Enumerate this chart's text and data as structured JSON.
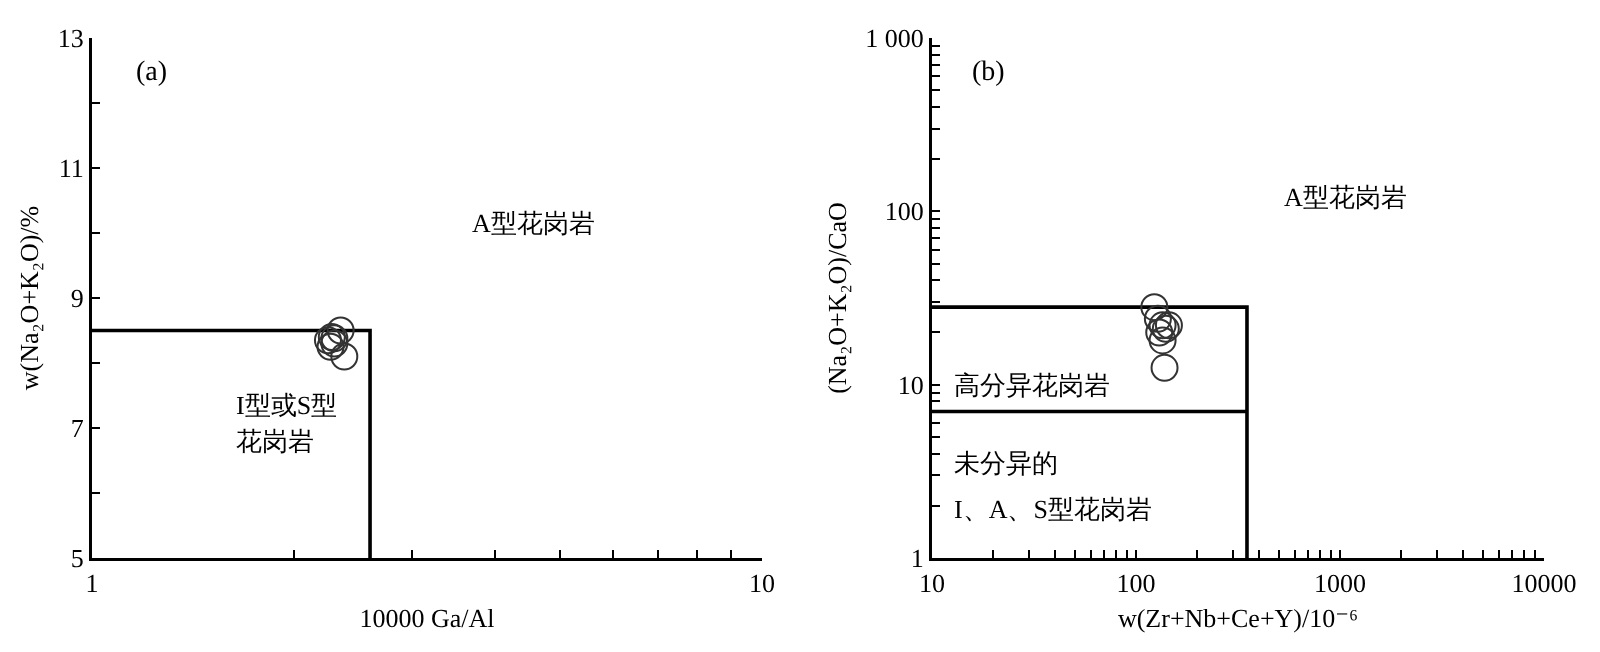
{
  "chart_data": [
    {
      "type": "scatter",
      "xlabel": "10000 Ga/Al",
      "ylabel": "w(Na₂O+K₂O)/%",
      "log": "x",
      "marker": "circle",
      "xlim": [
        1,
        10
      ],
      "xticks": [
        1,
        {
          "value": 2,
          "label": null
        },
        {
          "value": 3,
          "label": null
        },
        {
          "value": 4,
          "label": null
        },
        {
          "value": 5,
          "label": null
        },
        {
          "value": 6,
          "label": null
        },
        {
          "value": 7,
          "label": null
        },
        {
          "value": 8,
          "label": null
        },
        {
          "value": 9,
          "label": null
        },
        10
      ],
      "ylim": [
        5,
        13
      ],
      "yticks": [
        5,
        {
          "value": 6,
          "label": null
        },
        7,
        {
          "value": 8,
          "label": null
        },
        9,
        {
          "value": 10,
          "label": null
        },
        11,
        {
          "value": 12,
          "label": null
        },
        13
      ],
      "series": [
        {
          "color": "#333333",
          "x": [
            2.25,
            2.3,
            2.28,
            2.27,
            2.35,
            2.38,
            2.3
          ],
          "values": [
            8.35,
            8.3,
            8.4,
            8.25,
            8.5,
            8.1,
            8.38
          ]
        },
        {
          "type": "line",
          "color": "#000000",
          "marker": "none",
          "x": [
            1,
            2.6,
            2.6
          ],
          "values": [
            8.5,
            8.5,
            5
          ]
        }
      ],
      "annotations": [
        "(a)",
        "A型花岗岩",
        "I型或S型",
        "花岗岩"
      ]
    },
    {
      "type": "scatter",
      "xlabel": "w(Zr+Nb+Ce+Y)/10⁻⁶",
      "ylabel": "(Na₂O+K₂O)/CaO",
      "log": "xy",
      "marker": "circle",
      "xlim": [
        10,
        10000
      ],
      "xticks": [
        10,
        {
          "value": 20,
          "label": null
        },
        {
          "value": 30,
          "label": null
        },
        {
          "value": 40,
          "label": null
        },
        {
          "value": 50,
          "label": null
        },
        {
          "value": 60,
          "label": null
        },
        {
          "value": 70,
          "label": null
        },
        {
          "value": 80,
          "label": null
        },
        {
          "value": 90,
          "label": null
        },
        100,
        {
          "value": 200,
          "label": null
        },
        {
          "value": 300,
          "label": null
        },
        {
          "value": 400,
          "label": null
        },
        {
          "value": 500,
          "label": null
        },
        {
          "value": 600,
          "label": null
        },
        {
          "value": 700,
          "label": null
        },
        {
          "value": 800,
          "label": null
        },
        {
          "value": 900,
          "label": null
        },
        1000,
        {
          "value": 2000,
          "label": null
        },
        {
          "value": 3000,
          "label": null
        },
        {
          "value": 4000,
          "label": null
        },
        {
          "value": 5000,
          "label": null
        },
        {
          "value": 6000,
          "label": null
        },
        {
          "value": 7000,
          "label": null
        },
        {
          "value": 8000,
          "label": null
        },
        {
          "value": 9000,
          "label": null
        },
        10000
      ],
      "ylim": [
        1,
        1000
      ],
      "yticks": [
        1,
        {
          "value": 2,
          "label": null
        },
        {
          "value": 3,
          "label": null
        },
        {
          "value": 4,
          "label": null
        },
        {
          "value": 5,
          "label": null
        },
        {
          "value": 6,
          "label": null
        },
        {
          "value": 7,
          "label": null
        },
        {
          "value": 8,
          "label": null
        },
        {
          "value": 9,
          "label": null
        },
        10,
        {
          "value": 20,
          "label": null
        },
        {
          "value": 30,
          "label": null
        },
        {
          "value": 40,
          "label": null
        },
        {
          "value": 50,
          "label": null
        },
        {
          "value": 60,
          "label": null
        },
        {
          "value": 70,
          "label": null
        },
        {
          "value": 80,
          "label": null
        },
        {
          "value": 90,
          "label": null
        },
        100,
        {
          "value": 200,
          "label": null
        },
        {
          "value": 300,
          "label": null
        },
        {
          "value": 400,
          "label": null
        },
        {
          "value": 500,
          "label": null
        },
        {
          "value": 600,
          "label": null
        },
        {
          "value": 700,
          "label": null
        },
        {
          "value": 800,
          "label": null
        },
        {
          "value": 900,
          "label": null
        },
        {
          "value": 1000,
          "label": "1 000"
        }
      ],
      "series": [
        {
          "color": "#333333",
          "x": [
            123,
            128,
            135,
            140,
            145,
            130,
            135,
            138
          ],
          "values": [
            28,
            24,
            22,
            21,
            22,
            20,
            18,
            12.5
          ]
        },
        {
          "type": "line",
          "color": "#000000",
          "marker": "none",
          "x": [
            10,
            350,
            350
          ],
          "values": [
            28,
            28,
            1
          ]
        },
        {
          "type": "line",
          "color": "#000000",
          "marker": "none",
          "x": [
            10,
            350
          ],
          "values": [
            7,
            7
          ]
        }
      ],
      "annotations": [
        "(b)",
        "A型花岗岩",
        "高分异花岗岩",
        "未分异的",
        "I、A、S型花岗岩"
      ]
    }
  ]
}
